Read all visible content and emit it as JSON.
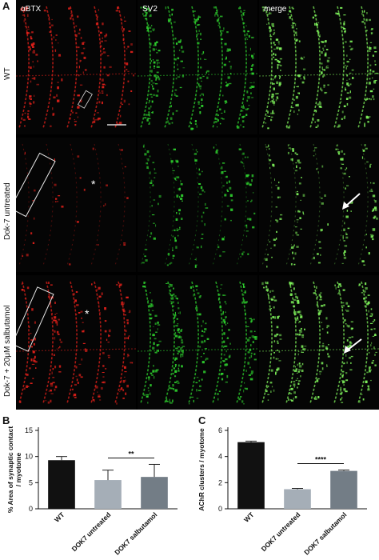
{
  "panel_a": {
    "letter": "A",
    "columns": [
      "αBTX",
      "SV2",
      "merge"
    ],
    "rows": [
      "WT",
      "Dok-7 untreated",
      "Dok-7 + 20μM salbutamol"
    ],
    "asterisk": "*",
    "colors": {
      "abtx": "#e0201a",
      "sv2": "#2ed02e",
      "merge": "#7df05a"
    }
  },
  "chart_data": [
    {
      "panel": "B",
      "type": "bar",
      "categories": [
        "WT",
        "DOK7 untreated",
        "DOK7 salbutamol"
      ],
      "values": [
        9.3,
        5.5,
        6.1
      ],
      "errors": [
        0.7,
        1.9,
        2.4
      ],
      "colors": [
        "#111111",
        "#a5aeb7",
        "#737d86"
      ],
      "ylabel": "% Area of synaptic contact / myotome",
      "ylim": [
        0,
        15
      ],
      "yticks": [
        0,
        5,
        10,
        15
      ],
      "significance": {
        "from": 1,
        "to": 2,
        "label": "**"
      }
    },
    {
      "panel": "C",
      "type": "bar",
      "categories": [
        "WT",
        "DOK7 untreated",
        "DOK7 salbutamol"
      ],
      "values": [
        5.1,
        1.5,
        2.9
      ],
      "errors": [
        0.08,
        0.06,
        0.07
      ],
      "colors": [
        "#111111",
        "#a5aeb7",
        "#737d86"
      ],
      "ylabel": "AChR clusters / myotome",
      "ylim": [
        0,
        6
      ],
      "yticks": [
        0,
        2,
        4,
        6
      ],
      "significance": {
        "from": 1,
        "to": 2,
        "label": "****"
      }
    }
  ]
}
